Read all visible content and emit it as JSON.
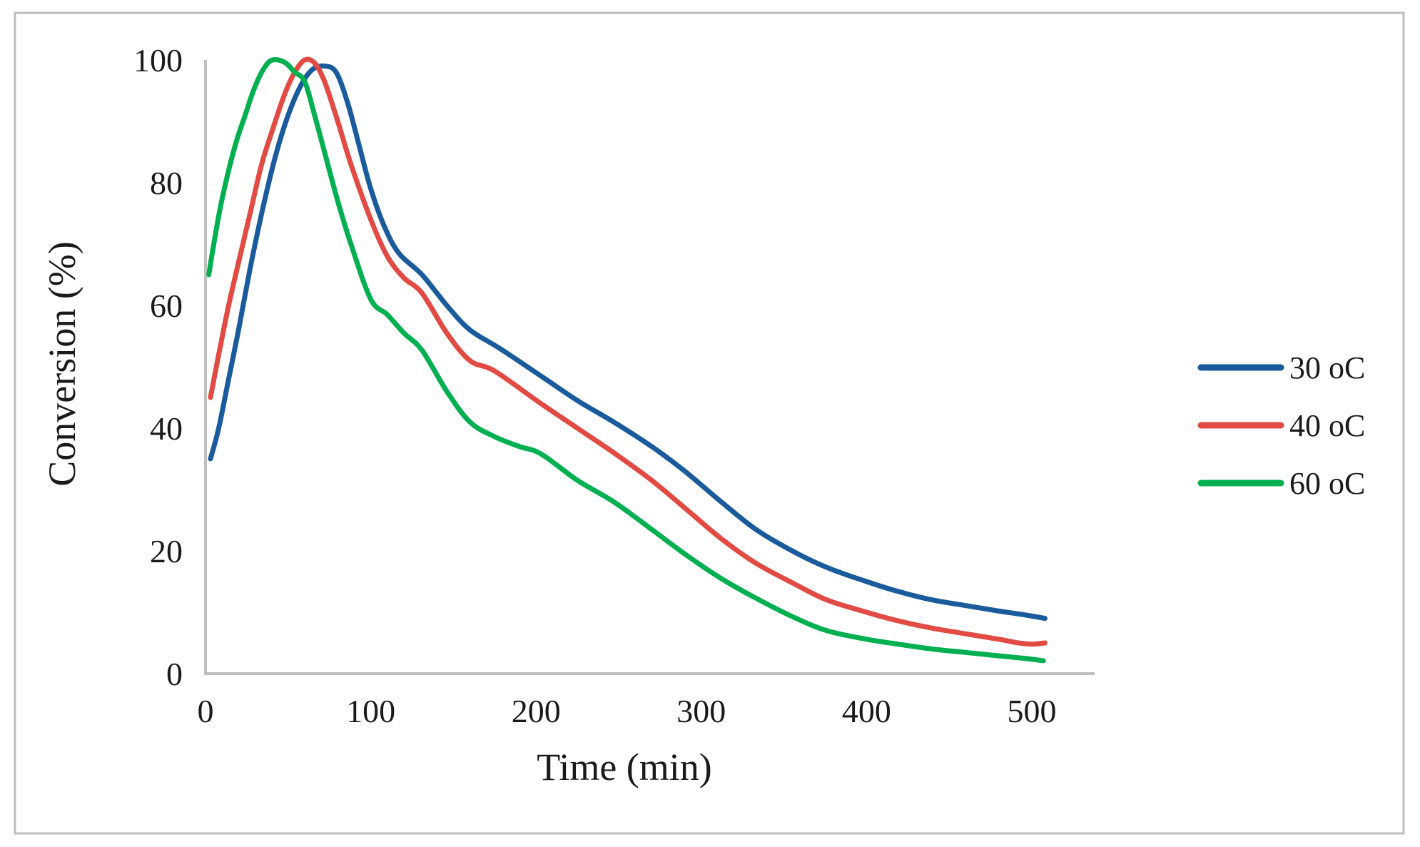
{
  "figure": {
    "background": "#ffffff",
    "border_color": "#bdbdbd"
  },
  "chart_data": {
    "type": "line",
    "title": "",
    "xlabel": "Time (min)",
    "ylabel": "Conversion (%)",
    "xlim": [
      0,
      538
    ],
    "ylim": [
      0,
      100
    ],
    "x_ticks": [
      0,
      100,
      200,
      300,
      400,
      500
    ],
    "y_ticks": [
      0,
      20,
      40,
      60,
      80,
      100
    ],
    "grid": false,
    "legend_position": "right",
    "axis_color": "#c0c0c0",
    "text_color": "#1a1a1a",
    "series": [
      {
        "name": "30 oC",
        "color": "#1a5b9c",
        "points": [
          [
            3,
            35
          ],
          [
            8,
            40
          ],
          [
            14,
            48
          ],
          [
            20,
            56
          ],
          [
            27,
            66
          ],
          [
            34,
            75
          ],
          [
            42,
            84
          ],
          [
            50,
            91
          ],
          [
            58,
            96
          ],
          [
            65,
            98.5
          ],
          [
            72,
            99
          ],
          [
            79,
            98
          ],
          [
            86,
            93
          ],
          [
            93,
            86
          ],
          [
            100,
            79
          ],
          [
            108,
            73
          ],
          [
            117,
            68.5
          ],
          [
            131,
            65
          ],
          [
            146,
            60
          ],
          [
            160,
            56
          ],
          [
            178,
            53
          ],
          [
            203,
            48.5
          ],
          [
            225,
            44.5
          ],
          [
            247,
            41
          ],
          [
            270,
            37
          ],
          [
            290,
            33
          ],
          [
            312,
            28
          ],
          [
            333,
            23.5
          ],
          [
            355,
            20
          ],
          [
            376,
            17.3
          ],
          [
            400,
            15
          ],
          [
            419,
            13.4
          ],
          [
            440,
            12
          ],
          [
            462,
            11
          ],
          [
            480,
            10.2
          ],
          [
            495,
            9.6
          ],
          [
            508,
            9
          ]
        ]
      },
      {
        "name": "40 oC",
        "color": "#e14b44",
        "points": [
          [
            3,
            45
          ],
          [
            8,
            52
          ],
          [
            14,
            60
          ],
          [
            20,
            67
          ],
          [
            27,
            75
          ],
          [
            34,
            83
          ],
          [
            41,
            89
          ],
          [
            48,
            94.5
          ],
          [
            54,
            98
          ],
          [
            60,
            100
          ],
          [
            66,
            99.5
          ],
          [
            72,
            96.5
          ],
          [
            80,
            90
          ],
          [
            88,
            83
          ],
          [
            100,
            74
          ],
          [
            110,
            68
          ],
          [
            120,
            64.5
          ],
          [
            131,
            62
          ],
          [
            146,
            55.5
          ],
          [
            160,
            51
          ],
          [
            175,
            49.3
          ],
          [
            203,
            44
          ],
          [
            225,
            40
          ],
          [
            247,
            36
          ],
          [
            270,
            31.5
          ],
          [
            290,
            27
          ],
          [
            312,
            22
          ],
          [
            333,
            18
          ],
          [
            355,
            14.8
          ],
          [
            376,
            12
          ],
          [
            400,
            10
          ],
          [
            419,
            8.6
          ],
          [
            440,
            7.4
          ],
          [
            462,
            6.4
          ],
          [
            480,
            5.6
          ],
          [
            492,
            5
          ],
          [
            500,
            4.8
          ],
          [
            508,
            5
          ]
        ]
      },
      {
        "name": "60 oC",
        "color": "#00b050",
        "points": [
          [
            2,
            65
          ],
          [
            5,
            70
          ],
          [
            9,
            76
          ],
          [
            14,
            82
          ],
          [
            19,
            87
          ],
          [
            24,
            91
          ],
          [
            29,
            95
          ],
          [
            34,
            98
          ],
          [
            39,
            99.8
          ],
          [
            44,
            100
          ],
          [
            49,
            99.4
          ],
          [
            54,
            98
          ],
          [
            60,
            96.5
          ],
          [
            66,
            91
          ],
          [
            72,
            85
          ],
          [
            80,
            77
          ],
          [
            88,
            70
          ],
          [
            100,
            61
          ],
          [
            110,
            58.5
          ],
          [
            120,
            55.5
          ],
          [
            131,
            52.7
          ],
          [
            146,
            46
          ],
          [
            160,
            41
          ],
          [
            175,
            38.6
          ],
          [
            190,
            37
          ],
          [
            203,
            35.8
          ],
          [
            225,
            31.5
          ],
          [
            247,
            28
          ],
          [
            270,
            23.5
          ],
          [
            290,
            19.5
          ],
          [
            312,
            15.5
          ],
          [
            333,
            12.3
          ],
          [
            355,
            9.3
          ],
          [
            376,
            7
          ],
          [
            400,
            5.6
          ],
          [
            419,
            4.8
          ],
          [
            440,
            4
          ],
          [
            462,
            3.4
          ],
          [
            480,
            2.9
          ],
          [
            495,
            2.5
          ],
          [
            507,
            2.1
          ]
        ]
      }
    ]
  }
}
